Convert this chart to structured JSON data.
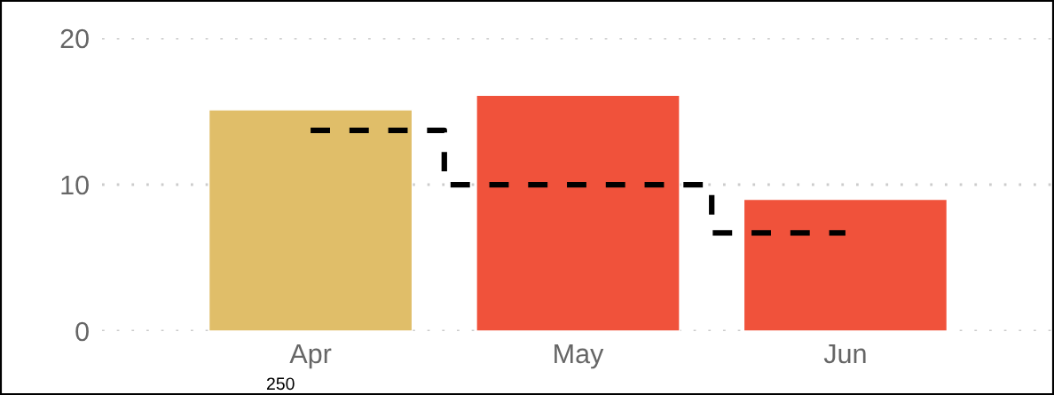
{
  "chart_data": {
    "type": "bar",
    "categories": [
      "Apr",
      "May",
      "Jun"
    ],
    "series": [
      {
        "values": [
          15.1,
          16.1,
          9.0
        ],
        "colors": [
          "#e0be69",
          "#f0523b",
          "#f0523b"
        ]
      },
      {
        "type": "step",
        "values": [
          13.7,
          10,
          6.7
        ],
        "color": "#000000",
        "line_style": "dashed"
      }
    ],
    "ylim": [
      0,
      20
    ],
    "yticks": [
      0,
      10,
      20
    ],
    "grid": "y",
    "annotations": [
      "250"
    ]
  }
}
